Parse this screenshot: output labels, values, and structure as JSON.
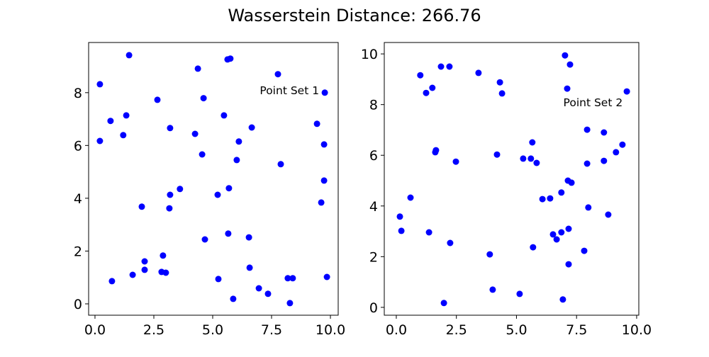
{
  "title": "Wasserstein Distance: 266.76",
  "chart_data": [
    {
      "type": "scatter",
      "annotation": {
        "text": "Point Set 1",
        "x": 7.0,
        "y": 8.1
      },
      "xlim": [
        -0.27,
        10.33
      ],
      "ylim": [
        -0.43,
        9.9
      ],
      "xticks": [
        "0.0",
        "2.5",
        "5.0",
        "7.5",
        "10.0"
      ],
      "yticks": [
        "0",
        "2",
        "4",
        "6",
        "8"
      ],
      "grid": false,
      "color": "#0000ff",
      "points": [
        [
          0.21,
          8.32
        ],
        [
          1.45,
          9.42
        ],
        [
          0.21,
          6.17
        ],
        [
          0.66,
          6.93
        ],
        [
          1.33,
          7.14
        ],
        [
          1.2,
          6.39
        ],
        [
          2.65,
          7.73
        ],
        [
          3.19,
          6.66
        ],
        [
          4.37,
          8.91
        ],
        [
          4.61,
          7.79
        ],
        [
          4.25,
          6.44
        ],
        [
          4.55,
          5.66
        ],
        [
          5.63,
          9.26
        ],
        [
          5.75,
          9.29
        ],
        [
          5.48,
          7.14
        ],
        [
          7.77,
          8.7
        ],
        [
          9.76,
          8.0
        ],
        [
          9.43,
          6.82
        ],
        [
          9.73,
          6.04
        ],
        [
          6.66,
          6.68
        ],
        [
          6.11,
          6.15
        ],
        [
          6.02,
          5.45
        ],
        [
          7.89,
          5.29
        ],
        [
          9.73,
          4.67
        ],
        [
          9.61,
          3.84
        ],
        [
          3.61,
          4.35
        ],
        [
          3.19,
          4.13
        ],
        [
          1.99,
          3.68
        ],
        [
          3.16,
          3.62
        ],
        [
          5.21,
          4.13
        ],
        [
          5.69,
          4.38
        ],
        [
          5.66,
          2.66
        ],
        [
          6.54,
          2.52
        ],
        [
          4.67,
          2.44
        ],
        [
          2.89,
          1.83
        ],
        [
          2.11,
          1.61
        ],
        [
          2.11,
          1.29
        ],
        [
          1.6,
          1.1
        ],
        [
          2.83,
          1.21
        ],
        [
          3.01,
          1.18
        ],
        [
          0.72,
          0.86
        ],
        [
          5.24,
          0.94
        ],
        [
          6.57,
          1.37
        ],
        [
          6.96,
          0.59
        ],
        [
          7.35,
          0.38
        ],
        [
          5.87,
          0.19
        ],
        [
          8.19,
          0.97
        ],
        [
          8.4,
          0.97
        ],
        [
          9.85,
          1.02
        ],
        [
          8.28,
          0.03
        ]
      ]
    },
    {
      "type": "scatter",
      "annotation": {
        "text": "Point Set 2",
        "x": 6.95,
        "y": 8.1
      },
      "xlim": [
        -0.5,
        10.09
      ],
      "ylim": [
        -0.31,
        10.45
      ],
      "xticks": [
        "0.0",
        "2.5",
        "5.0",
        "7.5",
        "10.0"
      ],
      "yticks": [
        "0",
        "2",
        "4",
        "6",
        "8",
        "10"
      ],
      "grid": false,
      "color": "#0000ff",
      "points": [
        [
          1.0,
          9.16
        ],
        [
          1.86,
          9.5
        ],
        [
          2.21,
          9.5
        ],
        [
          1.24,
          8.46
        ],
        [
          1.5,
          8.66
        ],
        [
          3.42,
          9.25
        ],
        [
          4.31,
          8.88
        ],
        [
          4.4,
          8.44
        ],
        [
          7.02,
          9.94
        ],
        [
          7.23,
          9.58
        ],
        [
          7.11,
          8.63
        ],
        [
          9.59,
          8.52
        ],
        [
          1.65,
          6.2
        ],
        [
          1.62,
          6.12
        ],
        [
          2.48,
          5.75
        ],
        [
          4.19,
          6.03
        ],
        [
          5.28,
          5.87
        ],
        [
          5.6,
          5.87
        ],
        [
          5.66,
          6.51
        ],
        [
          5.84,
          5.7
        ],
        [
          7.94,
          7.01
        ],
        [
          8.64,
          6.9
        ],
        [
          9.41,
          6.42
        ],
        [
          9.14,
          6.12
        ],
        [
          8.64,
          5.78
        ],
        [
          7.94,
          5.67
        ],
        [
          7.14,
          5.0
        ],
        [
          7.29,
          4.92
        ],
        [
          6.87,
          4.53
        ],
        [
          6.4,
          4.3
        ],
        [
          6.08,
          4.27
        ],
        [
          0.59,
          4.33
        ],
        [
          0.15,
          3.58
        ],
        [
          0.21,
          3.02
        ],
        [
          1.36,
          2.96
        ],
        [
          2.24,
          2.54
        ],
        [
          7.99,
          3.94
        ],
        [
          8.82,
          3.66
        ],
        [
          7.17,
          3.1
        ],
        [
          6.87,
          2.96
        ],
        [
          6.52,
          2.88
        ],
        [
          6.67,
          2.68
        ],
        [
          5.69,
          2.37
        ],
        [
          7.82,
          2.23
        ],
        [
          3.89,
          2.09
        ],
        [
          7.17,
          1.7
        ],
        [
          4.01,
          0.7
        ],
        [
          5.13,
          0.53
        ],
        [
          1.98,
          0.17
        ],
        [
          6.93,
          0.31
        ]
      ]
    }
  ]
}
